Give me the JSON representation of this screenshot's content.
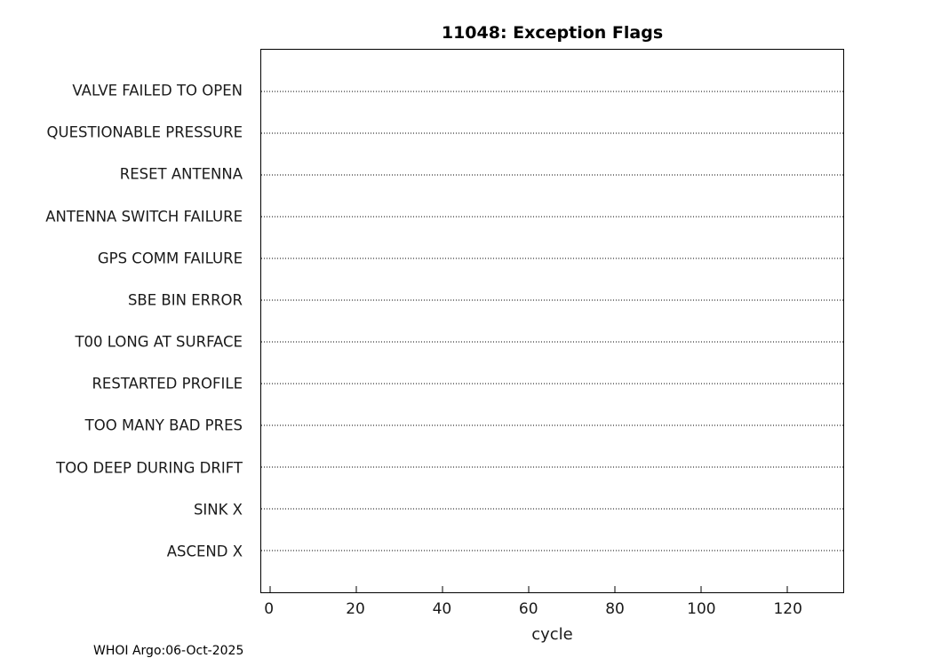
{
  "chart_data": {
    "type": "scatter",
    "title": "11048: Exception Flags",
    "xlabel": "cycle",
    "ylabel": "",
    "footer": "WHOI Argo:06-Oct-2025",
    "categories": [
      "VALVE FAILED TO OPEN",
      "QUESTIONABLE PRESSURE",
      "RESET ANTENNA",
      "ANTENNA SWITCH FAILURE",
      "GPS COMM FAILURE",
      "SBE BIN ERROR",
      "T00 LONG AT SURFACE",
      "RESTARTED PROFILE",
      "TOO MANY BAD PRES",
      "TOO DEEP DURING DRIFT",
      "SINK X",
      "ASCEND X"
    ],
    "series": [],
    "x_ticks": [
      0,
      20,
      40,
      60,
      80,
      100,
      120
    ],
    "xlim": [
      -2,
      133
    ],
    "grid": "dotted-horizontal-line-per-category",
    "legend": "none",
    "box": "on"
  }
}
